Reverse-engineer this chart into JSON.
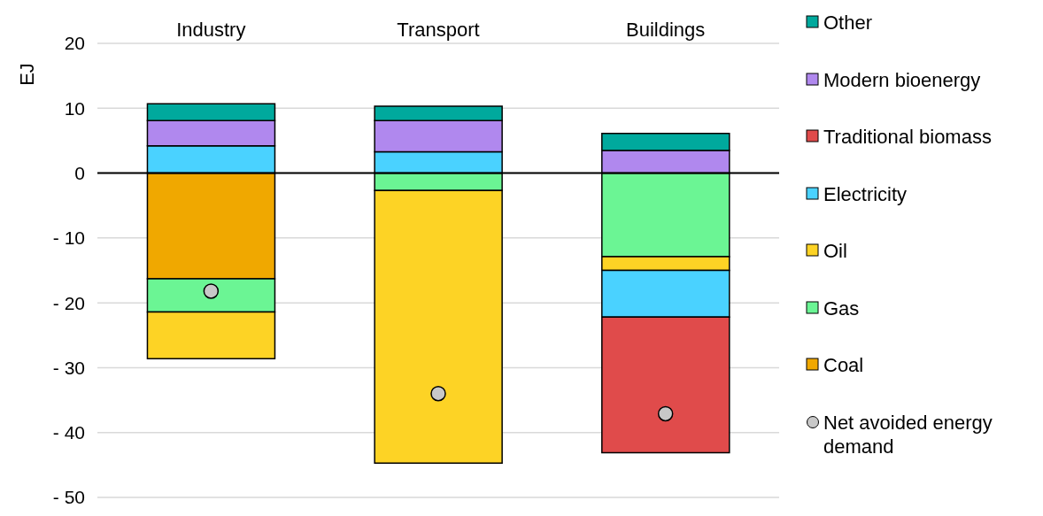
{
  "chart_data": {
    "type": "bar",
    "stacked": true,
    "ylabel": "EJ",
    "categories": [
      "Industry",
      "Transport",
      "Buildings"
    ],
    "series": [
      {
        "name": "Coal",
        "color": "#f0a800",
        "values": [
          -16.3,
          null,
          null
        ]
      },
      {
        "name": "Gas",
        "color": "#6bf594",
        "values": [
          -5.1,
          -2.7,
          -12.9
        ]
      },
      {
        "name": "Oil",
        "color": "#fdd325",
        "values": [
          -7.2,
          -42.0,
          -2.1
        ]
      },
      {
        "name": "Electricity",
        "color": "#4ad2ff",
        "values": [
          4.2,
          3.3,
          -7.2
        ]
      },
      {
        "name": "Traditional biomass",
        "color": "#e04b4b",
        "values": [
          null,
          null,
          -20.9
        ]
      },
      {
        "name": "Modern bioenergy",
        "color": "#b088ee",
        "values": [
          3.9,
          4.8,
          3.5
        ]
      },
      {
        "name": "Other",
        "color": "#00a99d",
        "values": [
          2.6,
          2.2,
          2.6
        ]
      },
      {
        "name": "Net avoided energy demand",
        "type": "scatter",
        "color": "#c8c8c8",
        "marker": "circle",
        "x": [
          "Industry",
          "Transport",
          "Buildings"
        ],
        "values": [
          -18.2,
          -34.0,
          -37.1
        ]
      }
    ],
    "ylim": [
      -50,
      20
    ],
    "yticks": [
      20,
      10,
      0,
      {
        "value": -10,
        "label": "- 10"
      },
      {
        "value": -20,
        "label": "- 20"
      },
      {
        "value": -30,
        "label": "- 30"
      },
      {
        "value": -40,
        "label": "- 40"
      },
      {
        "value": -50,
        "label": "- 50"
      }
    ],
    "grid": "y",
    "legend": "right",
    "ref_lines": [
      {
        "axis": "y",
        "value": 0,
        "color": "#000000"
      }
    ]
  }
}
